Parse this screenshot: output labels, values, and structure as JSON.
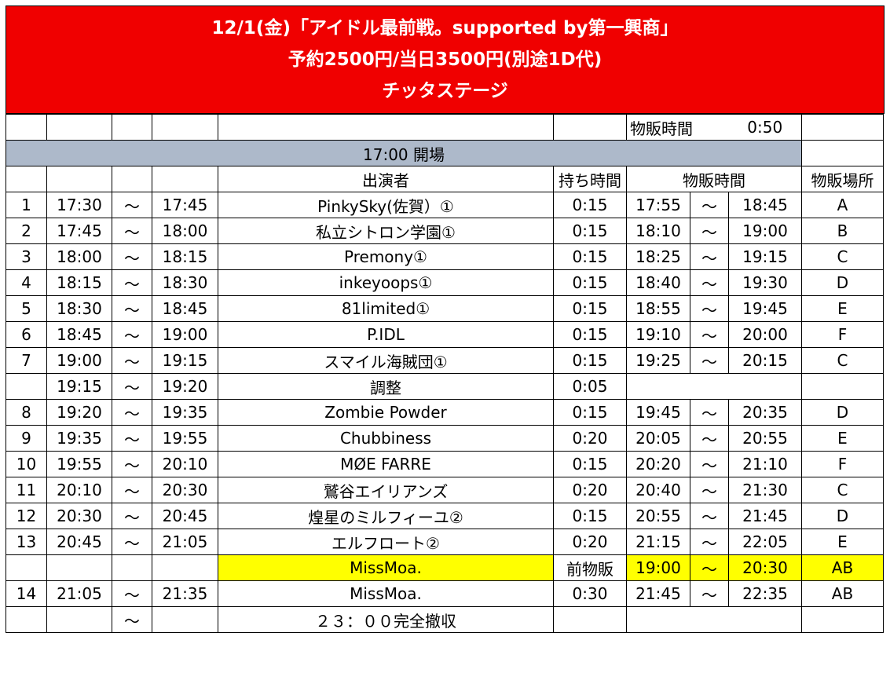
{
  "header": {
    "line1": "12/1(金)「アイドル最前戦。supported by第一興商」",
    "line2": "予約2500円/当日3500円(別途1D代)",
    "line3": "チッタステージ"
  },
  "merch_note": {
    "label": "物販時間",
    "value": "0:50"
  },
  "open": {
    "label": "17:00 開場"
  },
  "columns": {
    "performer": "出演者",
    "duration": "持ち時間",
    "merch_time": "物販時間",
    "merch_place": "物販場所"
  },
  "colors": {
    "header_bg": "#f00000",
    "open_bar": "#adb9ca",
    "highlight": "#ffff00"
  },
  "rows": [
    {
      "no": "1",
      "start": "17:30",
      "tilde": "〜",
      "end": "17:45",
      "name": "PinkySky(佐賀）①",
      "dur": "0:15",
      "ms": "17:55",
      "mt": "〜",
      "me": "18:45",
      "place": "A"
    },
    {
      "no": "2",
      "start": "17:45",
      "tilde": "〜",
      "end": "18:00",
      "name": "私立シトロン学園①",
      "dur": "0:15",
      "ms": "18:10",
      "mt": "〜",
      "me": "19:00",
      "place": "B"
    },
    {
      "no": "3",
      "start": "18:00",
      "tilde": "〜",
      "end": "18:15",
      "name": "Premony①",
      "dur": "0:15",
      "ms": "18:25",
      "mt": "〜",
      "me": "19:15",
      "place": "C"
    },
    {
      "no": "4",
      "start": "18:15",
      "tilde": "〜",
      "end": "18:30",
      "name": "inkeyoops①",
      "dur": "0:15",
      "ms": "18:40",
      "mt": "〜",
      "me": "19:30",
      "place": "D"
    },
    {
      "no": "5",
      "start": "18:30",
      "tilde": "〜",
      "end": "18:45",
      "name": "81limited①",
      "dur": "0:15",
      "ms": "18:55",
      "mt": "〜",
      "me": "19:45",
      "place": "E"
    },
    {
      "no": "6",
      "start": "18:45",
      "tilde": "〜",
      "end": "19:00",
      "name": "P.IDL",
      "dur": "0:15",
      "ms": "19:10",
      "mt": "〜",
      "me": "20:00",
      "place": "F"
    },
    {
      "no": "7",
      "start": "19:00",
      "tilde": "〜",
      "end": "19:15",
      "name": "スマイル海賊団①",
      "dur": "0:15",
      "ms": "19:25",
      "mt": "〜",
      "me": "20:15",
      "place": "C"
    }
  ],
  "adjust": {
    "start": "19:15",
    "tilde": "〜",
    "end": "19:20",
    "name": "調整",
    "dur": "0:05"
  },
  "rows2": [
    {
      "no": "8",
      "start": "19:20",
      "tilde": "〜",
      "end": "19:35",
      "name": "Zombie Powder",
      "dur": "0:15",
      "ms": "19:45",
      "mt": "〜",
      "me": "20:35",
      "place": "D"
    },
    {
      "no": "9",
      "start": "19:35",
      "tilde": "〜",
      "end": "19:55",
      "name": "Chubbiness",
      "dur": "0:20",
      "ms": "20:05",
      "mt": "〜",
      "me": "20:55",
      "place": "E"
    },
    {
      "no": "10",
      "start": "19:55",
      "tilde": "〜",
      "end": "20:10",
      "name": "MØE FARRE",
      "dur": "0:15",
      "ms": "20:20",
      "mt": "〜",
      "me": "21:10",
      "place": "F"
    },
    {
      "no": "11",
      "start": "20:10",
      "tilde": "〜",
      "end": "20:30",
      "name": "鷲谷エイリアンズ",
      "dur": "0:20",
      "ms": "20:40",
      "mt": "〜",
      "me": "21:30",
      "place": "C"
    },
    {
      "no": "12",
      "start": "20:30",
      "tilde": "〜",
      "end": "20:45",
      "name": "煌星のミルフィーユ②",
      "dur": "0:15",
      "ms": "20:55",
      "mt": "〜",
      "me": "21:45",
      "place": "D"
    },
    {
      "no": "13",
      "start": "20:45",
      "tilde": "〜",
      "end": "21:05",
      "name": "エルフロート②",
      "dur": "0:20",
      "ms": "21:15",
      "mt": "〜",
      "me": "22:05",
      "place": "E"
    }
  ],
  "pre_merch": {
    "name": "MissMoa.",
    "dur": "前物販",
    "ms": "19:00",
    "mt": "〜",
    "me": "20:30",
    "place": "AB"
  },
  "row14": {
    "no": "14",
    "start": "21:05",
    "tilde": "〜",
    "end": "21:35",
    "name": "MissMoa.",
    "dur": "0:30",
    "ms": "21:45",
    "mt": "〜",
    "me": "22:35",
    "place": "AB"
  },
  "closing": {
    "tilde": "〜",
    "text": "２３：００完全撤収"
  }
}
